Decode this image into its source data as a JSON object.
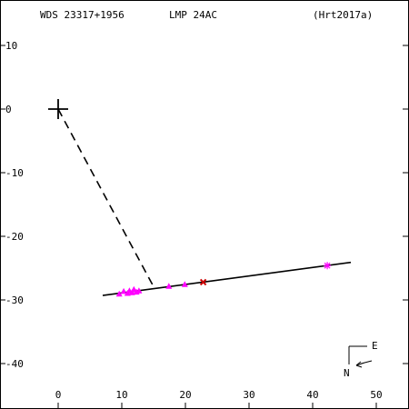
{
  "header": {
    "wds_id": "WDS 23317+1956",
    "discoverer": "LMP  24AC",
    "reference": "(Hrt2017a)"
  },
  "compass": {
    "east_label": "E",
    "north_label": "N"
  },
  "chart_data": {
    "type": "scatter",
    "title": "",
    "xlabel": "",
    "ylabel": "",
    "xlim": [
      -9,
      54
    ],
    "ylim": [
      -47,
      15
    ],
    "x_ticks": [
      0,
      10,
      20,
      30,
      40,
      50
    ],
    "y_ticks": [
      10,
      0,
      -10,
      -20,
      -30,
      -40
    ],
    "primary_star": {
      "x": 0,
      "y": 0,
      "marker": "plus"
    },
    "orbit_line": {
      "from": {
        "x": 7,
        "y": -29.3
      },
      "to": {
        "x": 46,
        "y": -24.1
      }
    },
    "separation_line": {
      "from": {
        "x": 0,
        "y": 0
      },
      "to": {
        "x": 15.2,
        "y": -28.3
      },
      "style": "dashed"
    },
    "observations": [
      {
        "x": 9.6,
        "y": -29.1,
        "marker": "triangle"
      },
      {
        "x": 10.3,
        "y": -28.7,
        "marker": "triangle"
      },
      {
        "x": 10.9,
        "y": -29.0,
        "marker": "triangle"
      },
      {
        "x": 11.2,
        "y": -28.6,
        "marker": "triangle"
      },
      {
        "x": 11.6,
        "y": -28.9,
        "marker": "triangle"
      },
      {
        "x": 11.9,
        "y": -28.4,
        "marker": "triangle"
      },
      {
        "x": 12.3,
        "y": -28.8,
        "marker": "triangle"
      },
      {
        "x": 12.7,
        "y": -28.6,
        "marker": "triangle"
      },
      {
        "x": 17.4,
        "y": -27.9,
        "marker": "triangle"
      },
      {
        "x": 19.9,
        "y": -27.6,
        "marker": "triangle"
      },
      {
        "x": 22.8,
        "y": -27.2,
        "marker": "cross"
      },
      {
        "x": 42.3,
        "y": -24.6,
        "marker": "star"
      }
    ],
    "colors": {
      "observation": "#ff00ff",
      "line": "#000000",
      "cross": "#cc0000"
    }
  }
}
